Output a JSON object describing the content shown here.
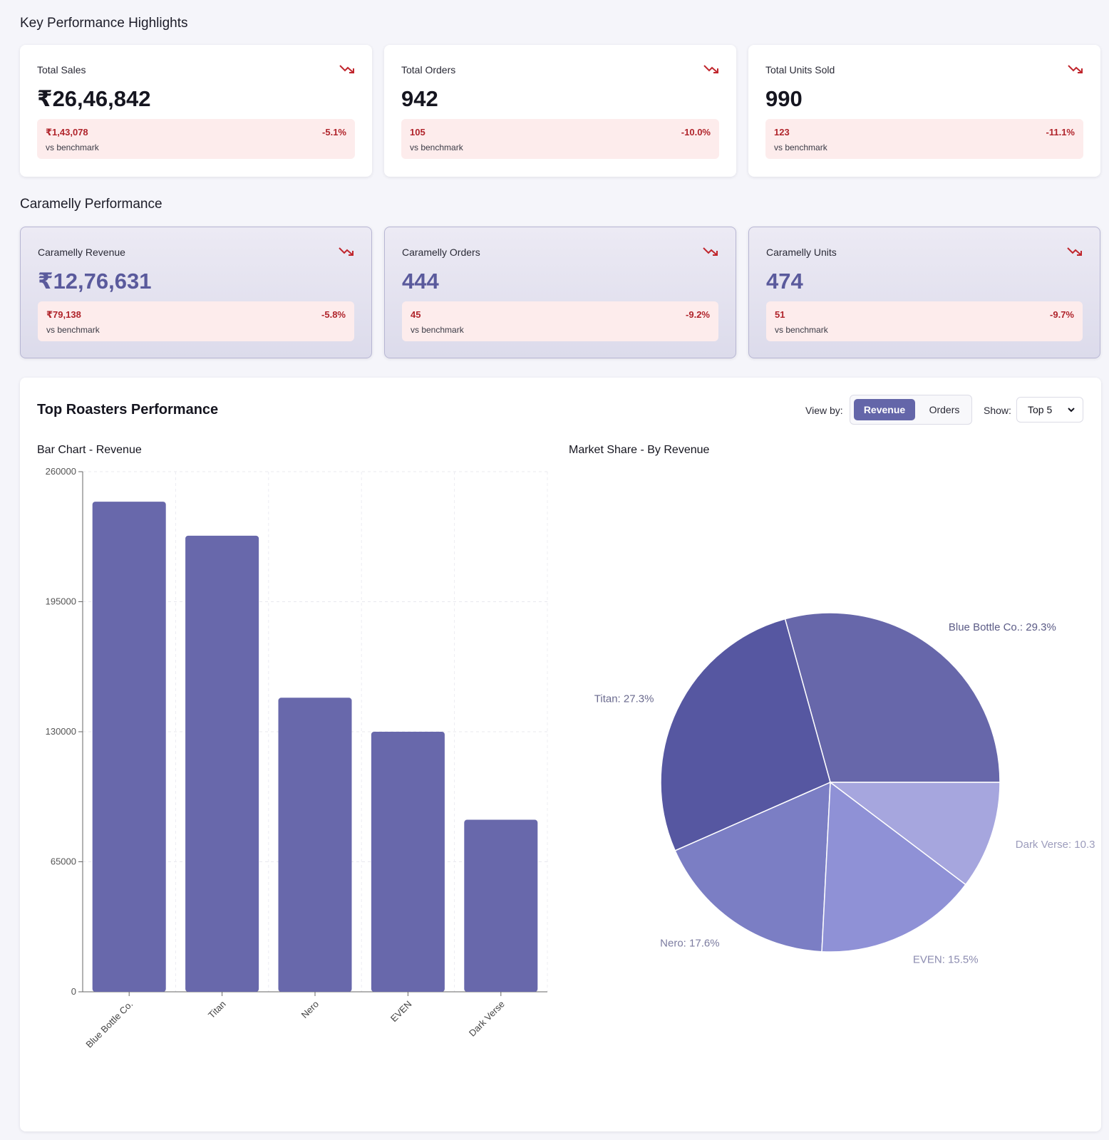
{
  "sections": {
    "kpi_title": "Key Performance Highlights",
    "caramelly_title": "Caramelly Performance"
  },
  "kpis": [
    {
      "label": "Total Sales",
      "value": "₹26,46,842",
      "diff": "₹1,43,078",
      "pct": "-5.1%",
      "vs": "vs benchmark"
    },
    {
      "label": "Total Orders",
      "value": "942",
      "diff": "105",
      "pct": "-10.0%",
      "vs": "vs benchmark"
    },
    {
      "label": "Total Units Sold",
      "value": "990",
      "diff": "123",
      "pct": "-11.1%",
      "vs": "vs benchmark"
    }
  ],
  "caramelly": [
    {
      "label": "Caramelly Revenue",
      "value": "₹12,76,631",
      "diff": "₹79,138",
      "pct": "-5.8%",
      "vs": "vs benchmark"
    },
    {
      "label": "Caramelly Orders",
      "value": "444",
      "diff": "45",
      "pct": "-9.2%",
      "vs": "vs benchmark"
    },
    {
      "label": "Caramelly Units",
      "value": "474",
      "diff": "51",
      "pct": "-9.7%",
      "vs": "vs benchmark"
    }
  ],
  "roasters": {
    "title": "Top Roasters Performance",
    "view_by_label": "View by:",
    "view_options": [
      "Revenue",
      "Orders"
    ],
    "view_selected": "Revenue",
    "show_label": "Show:",
    "show_value": "Top 5",
    "bar_title": "Bar Chart - Revenue",
    "pie_title": "Market Share - By Revenue"
  },
  "colors": {
    "accent": "#6466a9",
    "negative": "#b0242b",
    "bar": "#6868ab",
    "pie": [
      "#6767aa",
      "#5657a1",
      "#7b7ec4",
      "#8f91d6",
      "#a6a6de"
    ],
    "pie_labels": [
      "#5b5b86",
      "#6a6a8e",
      "#7c7ca0",
      "#8c8cb0",
      "#9c9cbc"
    ]
  },
  "icons": {
    "trend": "trend-down-icon",
    "select": "chevron-down-icon"
  },
  "chart_data": [
    {
      "type": "bar",
      "title": "Bar Chart - Revenue",
      "categories": [
        "Blue Bottle Co.",
        "Titan",
        "Nero",
        "EVEN",
        "Dark Verse"
      ],
      "values": [
        245000,
        228000,
        147000,
        130000,
        86000
      ],
      "yticks": [
        0,
        65000,
        130000,
        195000,
        260000
      ],
      "ylim": [
        0,
        260000
      ],
      "grid": true
    },
    {
      "type": "pie",
      "title": "Market Share - By Revenue",
      "labels": [
        "Blue Bottle Co.",
        "Titan",
        "Nero",
        "EVEN",
        "Dark Verse"
      ],
      "values": [
        29.3,
        27.3,
        17.6,
        15.5,
        10.3
      ],
      "display_labels": [
        "Blue Bottle Co.: 29.3%",
        "Titan: 27.3%",
        "Nero: 17.6%",
        "EVEN: 15.5%",
        "Dark Verse: 10.3"
      ]
    }
  ]
}
